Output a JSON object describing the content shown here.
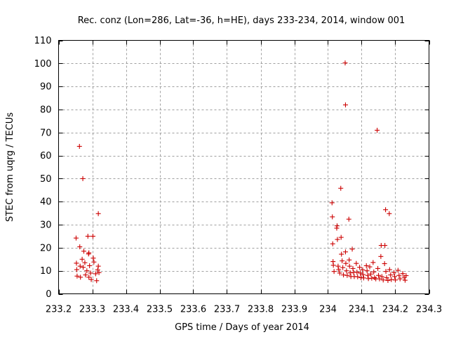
{
  "chart_data": {
    "type": "scatter",
    "title": "Rec. conz (Lon=286, Lat=-36, h=HE), days 233-234, 2014, window 001",
    "xlabel": "GPS time / Days of year 2014",
    "ylabel": "STEC from uqrg / TECUs",
    "xlim": [
      233.2,
      234.3
    ],
    "ylim": [
      0,
      110
    ],
    "xticks": [
      233.2,
      233.3,
      233.4,
      233.5,
      233.6,
      233.7,
      233.8,
      233.9,
      234,
      234.1,
      234.2,
      234.3
    ],
    "xtick_labels": [
      "233.2",
      "233.3",
      "233.4",
      "233.5",
      "233.6",
      "233.7",
      "233.8",
      "233.9",
      "234",
      "234.1",
      "234.2",
      "234.3"
    ],
    "yticks": [
      0,
      10,
      20,
      30,
      40,
      50,
      60,
      70,
      80,
      90,
      100,
      110
    ],
    "ytick_labels": [
      "0",
      "10",
      "20",
      "30",
      "40",
      "50",
      "60",
      "70",
      "80",
      "90",
      "100",
      "110"
    ],
    "grid": true,
    "marker": "+",
    "marker_color": "#cc0000",
    "points": [
      [
        233.252,
        24.2
      ],
      [
        233.253,
        13.3
      ],
      [
        233.254,
        10.5
      ],
      [
        233.255,
        7.7
      ],
      [
        233.262,
        64.0
      ],
      [
        233.263,
        20.4
      ],
      [
        233.264,
        12.0
      ],
      [
        233.265,
        7.2
      ],
      [
        233.27,
        15.0
      ],
      [
        233.272,
        50.0
      ],
      [
        233.273,
        11.5
      ],
      [
        233.275,
        18.5
      ],
      [
        233.278,
        13.5
      ],
      [
        233.28,
        8.2
      ],
      [
        233.284,
        10.0
      ],
      [
        233.287,
        25.0
      ],
      [
        233.289,
        17.3
      ],
      [
        233.29,
        17.8
      ],
      [
        233.29,
        7.2
      ],
      [
        233.292,
        12.2
      ],
      [
        233.295,
        9.0
      ],
      [
        233.297,
        6.2
      ],
      [
        233.302,
        25.0
      ],
      [
        233.303,
        15.5
      ],
      [
        233.305,
        13.8
      ],
      [
        233.31,
        8.7
      ],
      [
        233.313,
        5.7
      ],
      [
        233.318,
        34.8
      ],
      [
        233.318,
        12.0
      ],
      [
        233.32,
        9.2
      ],
      [
        233.316,
        10.4
      ],
      [
        234.012,
        39.5
      ],
      [
        234.013,
        33.4
      ],
      [
        234.014,
        21.7
      ],
      [
        234.015,
        14.0
      ],
      [
        234.016,
        12.4
      ],
      [
        234.018,
        9.7
      ],
      [
        234.026,
        28.5
      ],
      [
        234.027,
        29.5
      ],
      [
        234.028,
        23.6
      ],
      [
        234.03,
        12.0
      ],
      [
        234.032,
        10.5
      ],
      [
        234.035,
        9.0
      ],
      [
        234.038,
        45.8
      ],
      [
        234.039,
        24.5
      ],
      [
        234.04,
        17.2
      ],
      [
        234.042,
        14.3
      ],
      [
        234.044,
        11.4
      ],
      [
        234.046,
        8.2
      ],
      [
        234.051,
        100.2
      ],
      [
        234.052,
        82.0
      ],
      [
        234.052,
        18.2
      ],
      [
        234.053,
        13.2
      ],
      [
        234.055,
        10.0
      ],
      [
        234.057,
        8.0
      ],
      [
        234.062,
        32.4
      ],
      [
        234.063,
        14.7
      ],
      [
        234.064,
        12.0
      ],
      [
        234.066,
        9.1
      ],
      [
        234.068,
        7.5
      ],
      [
        234.072,
        19.4
      ],
      [
        234.074,
        11.0
      ],
      [
        234.076,
        9.3
      ],
      [
        234.078,
        7.5
      ],
      [
        234.084,
        13.2
      ],
      [
        234.086,
        9.4
      ],
      [
        234.088,
        7.4
      ],
      [
        234.094,
        11.5
      ],
      [
        234.096,
        9.0
      ],
      [
        234.098,
        7.0
      ],
      [
        234.103,
        10.4
      ],
      [
        234.104,
        8.4
      ],
      [
        234.106,
        6.9
      ],
      [
        234.114,
        12.2
      ],
      [
        234.116,
        10.0
      ],
      [
        234.118,
        8.0
      ],
      [
        234.12,
        6.6
      ],
      [
        234.124,
        11.7
      ],
      [
        234.127,
        8.6
      ],
      [
        234.13,
        6.8
      ],
      [
        234.134,
        13.6
      ],
      [
        234.136,
        9.5
      ],
      [
        234.138,
        7.0
      ],
      [
        234.142,
        6.5
      ],
      [
        234.146,
        71.0
      ],
      [
        234.148,
        11.0
      ],
      [
        234.15,
        8.0
      ],
      [
        234.153,
        6.5
      ],
      [
        234.157,
        16.2
      ],
      [
        234.158,
        21.0
      ],
      [
        234.16,
        7.5
      ],
      [
        234.164,
        6.0
      ],
      [
        234.168,
        13.1
      ],
      [
        234.169,
        21.0
      ],
      [
        234.171,
        36.5
      ],
      [
        234.172,
        9.7
      ],
      [
        234.174,
        7.0
      ],
      [
        234.178,
        5.8
      ],
      [
        234.182,
        34.8
      ],
      [
        234.183,
        10.5
      ],
      [
        234.186,
        8.2
      ],
      [
        234.188,
        6.2
      ],
      [
        234.196,
        9.2
      ],
      [
        234.198,
        7.5
      ],
      [
        234.2,
        6.0
      ],
      [
        234.208,
        10.2
      ],
      [
        234.211,
        8.0
      ],
      [
        234.214,
        6.5
      ],
      [
        234.222,
        8.8
      ],
      [
        234.226,
        7.2
      ],
      [
        234.229,
        5.9
      ],
      [
        234.232,
        7.9
      ]
    ]
  }
}
